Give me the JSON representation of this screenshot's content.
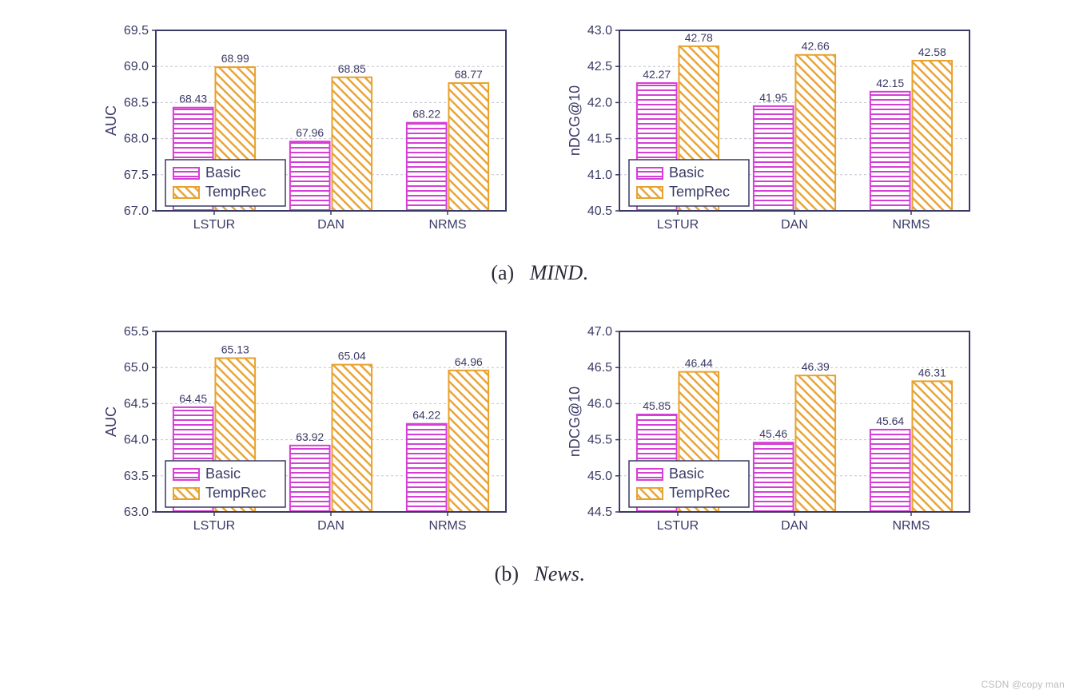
{
  "figure": {
    "background_color": "#ffffff",
    "colors": {
      "basic_stroke": "#d63fd6",
      "basic_fill": "#ffffff",
      "temprec_stroke": "#e8a12e",
      "temprec_fill": "#ffffff",
      "axis_color": "#3a3a66",
      "grid_color": "#c3c3d4",
      "tick_text_color": "#3a3a66",
      "value_label_color": "#3a3a66",
      "caption_color": "#2a2a3a",
      "watermark_color": "#bcbcbc"
    },
    "fonts": {
      "axis_label_pt": 18,
      "tick_pt": 16,
      "value_label_pt": 14,
      "legend_pt": 18,
      "caption_pt": 26
    },
    "series": {
      "legend_labels": [
        "Basic",
        "TempRec"
      ],
      "bar_width": 0.34,
      "bar_gap": 0.02,
      "group_gap": 0.3,
      "hatch_basic": "horizontal-lines",
      "hatch_temprec": "diagonal-lines"
    },
    "categories": [
      "LSTUR",
      "DAN",
      "NRMS"
    ],
    "panels": [
      {
        "id": "mind-auc",
        "row_caption_id": "a",
        "ylabel": "AUC",
        "ylim": [
          67.0,
          69.5
        ],
        "ytick_step": 0.5,
        "ytick_decimals": 1,
        "basic": [
          68.43,
          67.96,
          68.22
        ],
        "temprec": [
          68.99,
          68.85,
          68.77
        ]
      },
      {
        "id": "mind-ndcg",
        "row_caption_id": "a",
        "ylabel": "nDCG@10",
        "ylim": [
          40.5,
          43.0
        ],
        "ytick_step": 0.5,
        "ytick_decimals": 1,
        "basic": [
          42.27,
          41.95,
          42.15
        ],
        "temprec": [
          42.78,
          42.66,
          42.58
        ]
      },
      {
        "id": "news-auc",
        "row_caption_id": "b",
        "ylabel": "AUC",
        "ylim": [
          63.0,
          65.5
        ],
        "ytick_step": 0.5,
        "ytick_decimals": 1,
        "basic": [
          64.45,
          63.92,
          64.22
        ],
        "temprec": [
          65.13,
          65.04,
          64.96
        ]
      },
      {
        "id": "news-ndcg",
        "row_caption_id": "b",
        "ylabel": "nDCG@10",
        "ylim": [
          44.5,
          47.0
        ],
        "ytick_step": 0.5,
        "ytick_decimals": 1,
        "basic": [
          45.85,
          45.46,
          45.64
        ],
        "temprec": [
          46.44,
          46.39,
          46.31
        ]
      }
    ],
    "captions": {
      "a": {
        "paren": "(a)",
        "label": "MIND",
        "trail": "."
      },
      "b": {
        "paren": "(b)",
        "label": "News",
        "trail": "."
      }
    },
    "watermark": "CSDN @copy man"
  }
}
